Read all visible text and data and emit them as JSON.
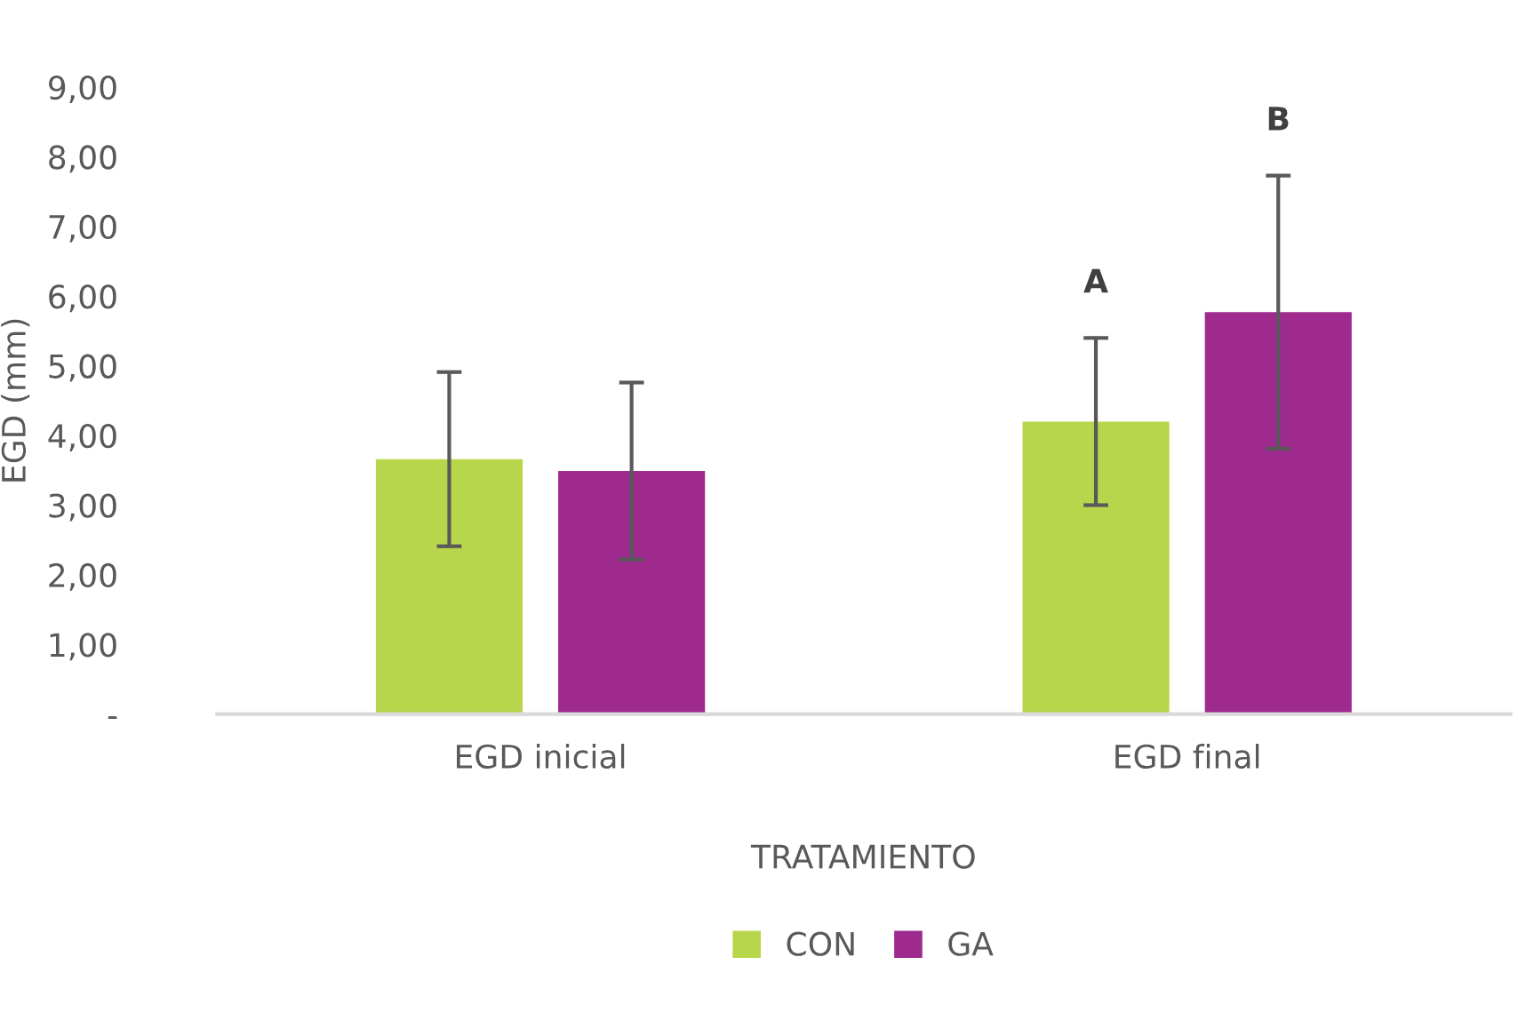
{
  "chart_data": {
    "type": "bar",
    "xlabel": "TRATAMIENTO",
    "ylabel": "EGD (mm)",
    "categories": [
      "EGD inicial",
      "EGD final"
    ],
    "series": [
      {
        "name": "CON",
        "color": "#b8d64b",
        "values": [
          3.66,
          4.2
        ],
        "errors": [
          1.25,
          1.2
        ]
      },
      {
        "name": "GA",
        "color": "#9e2a8e",
        "values": [
          3.49,
          5.77
        ],
        "errors": [
          1.27,
          1.96
        ]
      }
    ],
    "ylim": [
      0,
      9
    ],
    "yticks": [
      {
        "value": 0,
        "label": "-"
      },
      {
        "value": 1,
        "label": "1,00"
      },
      {
        "value": 2,
        "label": "2,00"
      },
      {
        "value": 3,
        "label": "3,00"
      },
      {
        "value": 4,
        "label": "4,00"
      },
      {
        "value": 5,
        "label": "5,00"
      },
      {
        "value": 6,
        "label": "6,00"
      },
      {
        "value": 7,
        "label": "7,00"
      },
      {
        "value": 8,
        "label": "8,00"
      },
      {
        "value": 9,
        "label": "9,00"
      }
    ],
    "annotations": [
      "A",
      "B"
    ],
    "grid": false,
    "legend": "bottom"
  }
}
